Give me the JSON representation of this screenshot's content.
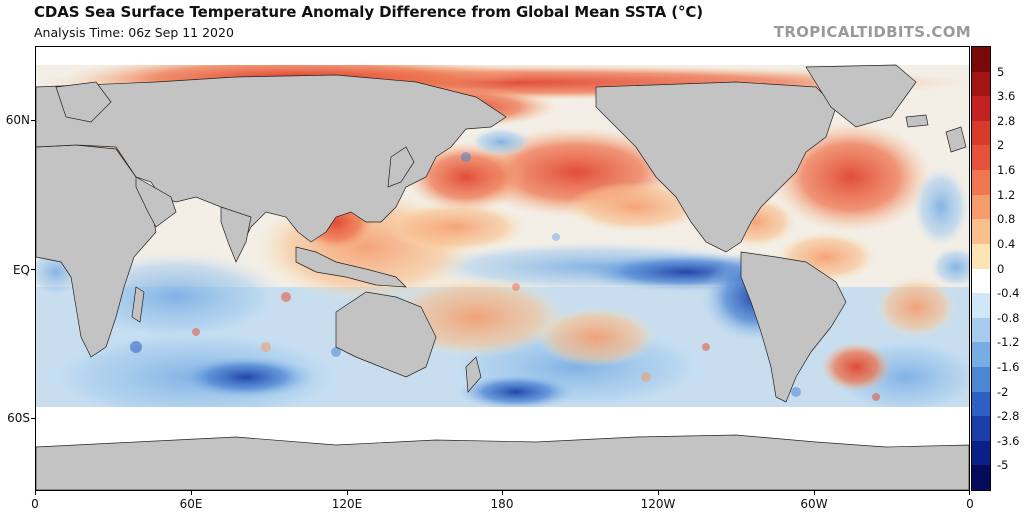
{
  "header": {
    "title": "CDAS Sea Surface Temperature Anomaly Difference from Global Mean SSTA (°C)",
    "subtitle": "Analysis Time: 06z Sep 11 2020",
    "brand": "TROPICALTIDBITS.COM"
  },
  "map": {
    "longitude_labels": [
      "0",
      "60E",
      "120E",
      "180",
      "120W",
      "60W",
      "0"
    ],
    "latitude_labels": [
      "60N",
      "EQ",
      "60S"
    ],
    "land_color": "#c3c3c3",
    "ice_color": "#ffffff"
  },
  "colorbar": {
    "labels": [
      "5",
      "3.6",
      "2.8",
      "2",
      "1.6",
      "1.2",
      "0.8",
      "0.4",
      "0",
      "-0.4",
      "-0.8",
      "-1.2",
      "-1.6",
      "-2",
      "-2.8",
      "-3.6",
      "-5"
    ],
    "colors": [
      "#7a0a0a",
      "#a51414",
      "#c42222",
      "#d93a2a",
      "#e5533a",
      "#ef7650",
      "#f59b6c",
      "#f9c08e",
      "#fce4b4",
      "#ffffff",
      "#cfe7f7",
      "#a6cdef",
      "#78ade3",
      "#4d86d5",
      "#2e5fc4",
      "#1b3ea6",
      "#0b1f86",
      "#050c5c"
    ]
  }
}
